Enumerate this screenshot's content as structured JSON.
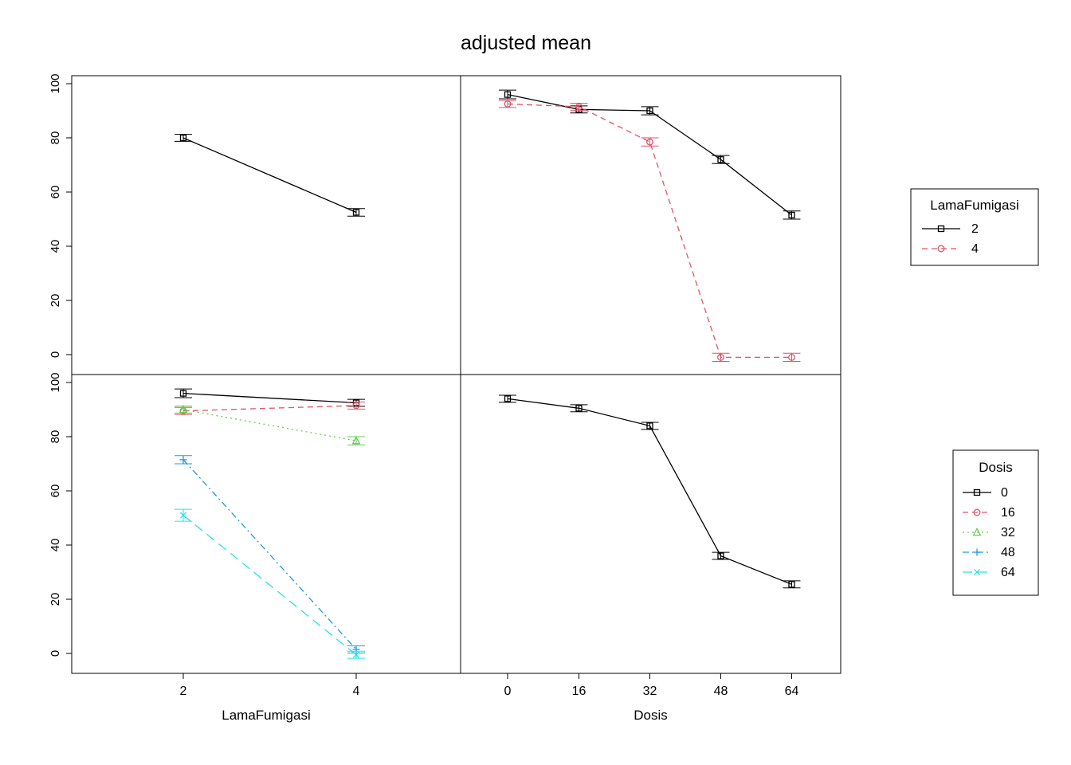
{
  "title": "adjusted mean",
  "axes": {
    "x_left_label": "LamaFumigasi",
    "x_right_label": "Dosis",
    "x_left_ticks": [
      "2",
      "4"
    ],
    "x_right_ticks": [
      "0",
      "16",
      "32",
      "48",
      "64"
    ],
    "y_ticks_top": [
      0,
      20,
      40,
      60,
      80,
      100
    ],
    "y_ticks_bottom": [
      0,
      20,
      40,
      60,
      80,
      100
    ]
  },
  "palette": {
    "black": "#000000",
    "red": "#DF536B",
    "green": "#61D04F",
    "blue": "#2297E6",
    "cyan": "#28E2E5"
  },
  "chart_data": [
    {
      "panel": "top-left",
      "type": "line",
      "xlabel": "LamaFumigasi",
      "ylim": [
        0,
        100
      ],
      "x_categories": [
        "2",
        "4"
      ],
      "series": [
        {
          "name": "adjusted mean",
          "color": "black",
          "linetype": "solid",
          "marker": "square",
          "values": [
            80,
            52.5
          ],
          "stderr": [
            1.3,
            1.4
          ]
        }
      ]
    },
    {
      "panel": "top-right",
      "type": "line",
      "xlabel": "Dosis",
      "trace_factor": "LamaFumigasi",
      "ylim": [
        0,
        100
      ],
      "x_categories": [
        "0",
        "16",
        "32",
        "48",
        "64"
      ],
      "series": [
        {
          "name": "2",
          "color": "black",
          "linetype": "solid",
          "marker": "square",
          "values": [
            96,
            90.5,
            90,
            72,
            51.5
          ],
          "stderr": [
            1.6,
            1.3,
            1.5,
            1.5,
            1.5
          ]
        },
        {
          "name": "4",
          "color": "red",
          "linetype": "dashed",
          "marker": "circle",
          "values": [
            92.5,
            91.5,
            78.5,
            -1,
            -1
          ],
          "stderr": [
            1.3,
            1.3,
            1.5,
            1.5,
            1.5
          ]
        }
      ]
    },
    {
      "panel": "bottom-left",
      "type": "line",
      "xlabel": "LamaFumigasi",
      "trace_factor": "Dosis",
      "ylim": [
        0,
        100
      ],
      "x_categories": [
        "2",
        "4"
      ],
      "series": [
        {
          "name": "0",
          "color": "black",
          "linetype": "solid",
          "marker": "square",
          "values": [
            96,
            92.5
          ],
          "stderr": [
            1.6,
            1.3
          ]
        },
        {
          "name": "16",
          "color": "red",
          "linetype": "dashed",
          "marker": "circle",
          "values": [
            89.5,
            91.5
          ],
          "stderr": [
            1.3,
            1.3
          ]
        },
        {
          "name": "32",
          "color": "green",
          "linetype": "dotted",
          "marker": "triangle",
          "values": [
            90,
            78.5
          ],
          "stderr": [
            1.3,
            1.5
          ]
        },
        {
          "name": "48",
          "color": "blue",
          "linetype": "dashdot",
          "marker": "plus",
          "values": [
            71.5,
            1.5
          ],
          "stderr": [
            1.5,
            1.3
          ]
        },
        {
          "name": "64",
          "color": "cyan",
          "linetype": "longdash",
          "marker": "x",
          "values": [
            51,
            -0.5
          ],
          "stderr": [
            2.2,
            1.3
          ]
        }
      ]
    },
    {
      "panel": "bottom-right",
      "type": "line",
      "xlabel": "Dosis",
      "ylim": [
        0,
        100
      ],
      "x_categories": [
        "0",
        "16",
        "32",
        "48",
        "64"
      ],
      "series": [
        {
          "name": "adjusted mean",
          "color": "black",
          "linetype": "solid",
          "marker": "square",
          "values": [
            94,
            90.5,
            84,
            36,
            25.5
          ],
          "stderr": [
            1.3,
            1.3,
            1.3,
            1.3,
            1.3
          ]
        }
      ]
    }
  ],
  "legends": [
    {
      "title": "LamaFumigasi",
      "entries": [
        {
          "label": "2",
          "color": "black",
          "linetype": "solid",
          "marker": "square"
        },
        {
          "label": "4",
          "color": "red",
          "linetype": "dashed",
          "marker": "circle"
        }
      ]
    },
    {
      "title": "Dosis",
      "entries": [
        {
          "label": "0",
          "color": "black",
          "linetype": "solid",
          "marker": "square"
        },
        {
          "label": "16",
          "color": "red",
          "linetype": "dashed",
          "marker": "circle"
        },
        {
          "label": "32",
          "color": "green",
          "linetype": "dotted",
          "marker": "triangle"
        },
        {
          "label": "48",
          "color": "blue",
          "linetype": "dashdot",
          "marker": "plus"
        },
        {
          "label": "64",
          "color": "cyan",
          "linetype": "longdash",
          "marker": "x"
        }
      ]
    }
  ]
}
